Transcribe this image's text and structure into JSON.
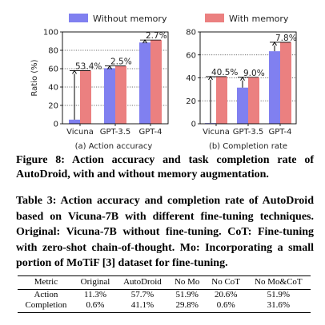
{
  "colors": {
    "without_memory": "#8080f0",
    "with_memory": "#eb8080"
  },
  "chart_data": [
    {
      "type": "bar",
      "categories": [
        "Vicuna",
        "GPT-3.5",
        "GPT-4"
      ],
      "series": [
        {
          "name": "Without memory",
          "values": [
            4.5,
            60.5,
            88.5
          ]
        },
        {
          "name": "With memory",
          "values": [
            57.9,
            63.0,
            91.2
          ]
        }
      ],
      "annotations": [
        "53.4%",
        "2.5%",
        "2.7%"
      ],
      "ylabel": "Ratio (%)",
      "ylim": [
        0,
        100
      ],
      "yticks": [
        0,
        20,
        40,
        60,
        80,
        100
      ],
      "grid": "horizontal dotted",
      "legend": "top",
      "subcaption": "(a) Action accuracy"
    },
    {
      "type": "bar",
      "categories": [
        "Vicuna",
        "GPT-3.5",
        "GPT-4"
      ],
      "series": [
        {
          "name": "Without memory",
          "values": [
            0.6,
            31.5,
            63.2
          ]
        },
        {
          "name": "With memory",
          "values": [
            41.1,
            40.5,
            71.0
          ]
        }
      ],
      "annotations": [
        "40.5%",
        "9.0%",
        "7.8%"
      ],
      "ylim": [
        0,
        80
      ],
      "yticks": [
        0,
        20,
        40,
        60,
        80
      ],
      "grid": "horizontal dotted",
      "legend": "top",
      "subcaption": "(b) Completion rate"
    }
  ],
  "figure_caption": "Figure 8: Action accuracy and task completion rate of AutoDroid, with and without memory augmentation.",
  "table_caption": "Table 3: Action accuracy and completion rate of AutoDroid based on Vicuna-7B with different fine-tuning techniques. Original: Vicuna-7B without fine-tuning. CoT: Fine-tuning with zero-shot chain-of-thought. Mo: Incorporating a small portion of MoTiF [3] dataset for fine-tuning.",
  "table": {
    "headers": [
      "Metric",
      "Original",
      "AutoDroid",
      "No Mo",
      "No CoT",
      "No Mo&CoT"
    ],
    "rows": [
      [
        "Action",
        "11.3%",
        "57.7%",
        "51.9%",
        "20.6%",
        "51.9%"
      ],
      [
        "Completion",
        "0.6%",
        "41.1%",
        "29.8%",
        "0.6%",
        "31.6%"
      ]
    ]
  }
}
